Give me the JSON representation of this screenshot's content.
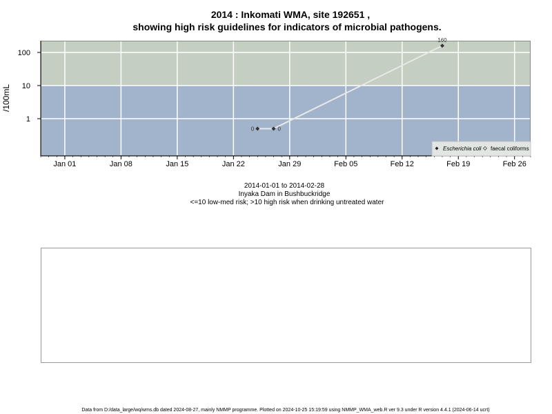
{
  "chart_data": {
    "type": "line",
    "title": "2014 : Inkomati WMA, site 192651 ,",
    "subtitle": "showing high risk guidelines for indicators of microbial pathogens.",
    "ylabel": "/100mL",
    "y_scale": "log",
    "y_ticks": [
      "1",
      "10",
      "100"
    ],
    "x_ticks": [
      "Jan 01",
      "Jan 08",
      "Jan 15",
      "Jan 22",
      "Jan 29",
      "Feb 05",
      "Feb 12",
      "Feb 19",
      "Feb 26"
    ],
    "x_range": [
      "2013-12-29",
      "2014-02-28"
    ],
    "grid": true,
    "bands": [
      {
        "label": "<=10 low-med risk",
        "color": "#a2b4cb"
      },
      {
        "label": ">10 high risk",
        "color": "#c4cec1"
      }
    ],
    "series": [
      {
        "name": "Escherichia coli",
        "marker": "filled-diamond",
        "color": "#333333",
        "points": [
          {
            "x": "2014-01-25",
            "y": 0.5,
            "label": "0"
          },
          {
            "x": "2014-01-27",
            "y": 0.5,
            "label": "0"
          },
          {
            "x": "2014-02-17",
            "y": 160,
            "label": "160"
          }
        ]
      },
      {
        "name": "faecal coliforms",
        "marker": "open-diamond",
        "color": "#555555",
        "points": []
      }
    ],
    "legend": {
      "placement": "bottom-right",
      "entries": [
        "Escherichia coli",
        "faecal coliforms"
      ]
    },
    "annotations": [
      "2014-01-01 to 2014-02-28",
      "Inyaka Dam in Bushbuckridge",
      "<=10 low-med risk; >10 high risk when drinking untreated water"
    ]
  },
  "footer": "Data from D:/data_large/wq/wms.db dated 2024-08-27, mainly NMMP programme. Plotted on 2024-10-25 15:19:59 using NMMP_WMA_web.R ver 9.3 under R version 4.4.1 (2024-06-14 ucrt)"
}
